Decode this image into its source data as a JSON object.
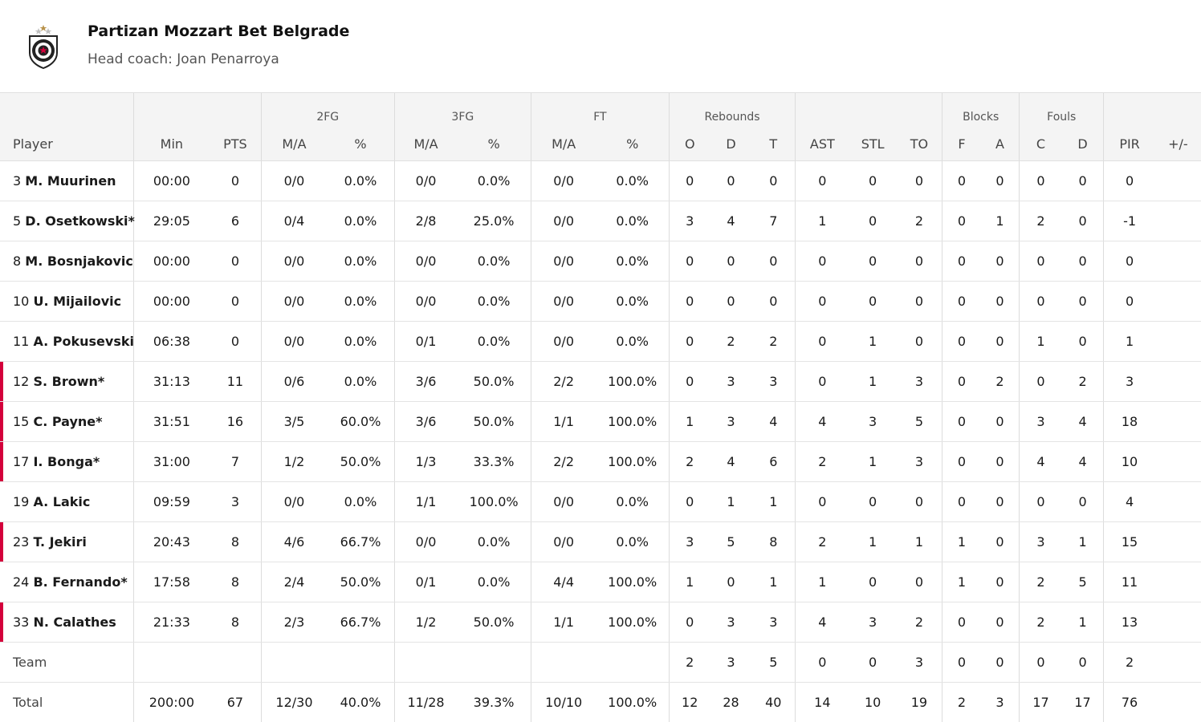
{
  "team": {
    "name": "Partizan Mozzart Bet Belgrade",
    "coach": "Head coach: Joan Penarroya",
    "logo_icon": "partizan-crest-icon"
  },
  "columns": {
    "groups": {
      "fg2": "2FG",
      "fg3": "3FG",
      "ft": "FT",
      "rebounds": "Rebounds",
      "blocks": "Blocks",
      "fouls": "Fouls"
    },
    "sub": {
      "player": "Player",
      "min": "Min",
      "pts": "PTS",
      "fg2_ma": "M/A",
      "fg2_pct": "%",
      "fg3_ma": "M/A",
      "fg3_pct": "%",
      "ft_ma": "M/A",
      "ft_pct": "%",
      "reb_o": "O",
      "reb_d": "D",
      "reb_t": "T",
      "ast": "AST",
      "stl": "STL",
      "to": "TO",
      "blk_f": "F",
      "blk_a": "A",
      "foul_c": "C",
      "foul_d": "D",
      "pir": "PIR",
      "pm": "+/-"
    }
  },
  "players": [
    {
      "num": "3",
      "name": "M. Muurinen",
      "bar": false,
      "min": "00:00",
      "pts": "0",
      "fg2_ma": "0/0",
      "fg2_pct": "0.0%",
      "fg3_ma": "0/0",
      "fg3_pct": "0.0%",
      "ft_ma": "0/0",
      "ft_pct": "0.0%",
      "reb_o": "0",
      "reb_d": "0",
      "reb_t": "0",
      "ast": "0",
      "stl": "0",
      "to": "0",
      "blk_f": "0",
      "blk_a": "0",
      "foul_c": "0",
      "foul_d": "0",
      "pir": "0",
      "pm": ""
    },
    {
      "num": "5",
      "name": "D. Osetkowski*",
      "bar": false,
      "min": "29:05",
      "pts": "6",
      "fg2_ma": "0/4",
      "fg2_pct": "0.0%",
      "fg3_ma": "2/8",
      "fg3_pct": "25.0%",
      "ft_ma": "0/0",
      "ft_pct": "0.0%",
      "reb_o": "3",
      "reb_d": "4",
      "reb_t": "7",
      "ast": "1",
      "stl": "0",
      "to": "2",
      "blk_f": "0",
      "blk_a": "1",
      "foul_c": "2",
      "foul_d": "0",
      "pir": "-1",
      "pm": ""
    },
    {
      "num": "8",
      "name": "M. Bosnjakovic",
      "bar": false,
      "min": "00:00",
      "pts": "0",
      "fg2_ma": "0/0",
      "fg2_pct": "0.0%",
      "fg3_ma": "0/0",
      "fg3_pct": "0.0%",
      "ft_ma": "0/0",
      "ft_pct": "0.0%",
      "reb_o": "0",
      "reb_d": "0",
      "reb_t": "0",
      "ast": "0",
      "stl": "0",
      "to": "0",
      "blk_f": "0",
      "blk_a": "0",
      "foul_c": "0",
      "foul_d": "0",
      "pir": "0",
      "pm": ""
    },
    {
      "num": "10",
      "name": "U. Mijailovic",
      "bar": false,
      "min": "00:00",
      "pts": "0",
      "fg2_ma": "0/0",
      "fg2_pct": "0.0%",
      "fg3_ma": "0/0",
      "fg3_pct": "0.0%",
      "ft_ma": "0/0",
      "ft_pct": "0.0%",
      "reb_o": "0",
      "reb_d": "0",
      "reb_t": "0",
      "ast": "0",
      "stl": "0",
      "to": "0",
      "blk_f": "0",
      "blk_a": "0",
      "foul_c": "0",
      "foul_d": "0",
      "pir": "0",
      "pm": ""
    },
    {
      "num": "11",
      "name": "A. Pokusevski",
      "bar": false,
      "min": "06:38",
      "pts": "0",
      "fg2_ma": "0/0",
      "fg2_pct": "0.0%",
      "fg3_ma": "0/1",
      "fg3_pct": "0.0%",
      "ft_ma": "0/0",
      "ft_pct": "0.0%",
      "reb_o": "0",
      "reb_d": "2",
      "reb_t": "2",
      "ast": "0",
      "stl": "1",
      "to": "0",
      "blk_f": "0",
      "blk_a": "0",
      "foul_c": "1",
      "foul_d": "0",
      "pir": "1",
      "pm": ""
    },
    {
      "num": "12",
      "name": "S. Brown*",
      "bar": true,
      "min": "31:13",
      "pts": "11",
      "fg2_ma": "0/6",
      "fg2_pct": "0.0%",
      "fg3_ma": "3/6",
      "fg3_pct": "50.0%",
      "ft_ma": "2/2",
      "ft_pct": "100.0%",
      "reb_o": "0",
      "reb_d": "3",
      "reb_t": "3",
      "ast": "0",
      "stl": "1",
      "to": "3",
      "blk_f": "0",
      "blk_a": "2",
      "foul_c": "0",
      "foul_d": "2",
      "pir": "3",
      "pm": ""
    },
    {
      "num": "15",
      "name": "C. Payne*",
      "bar": true,
      "min": "31:51",
      "pts": "16",
      "fg2_ma": "3/5",
      "fg2_pct": "60.0%",
      "fg3_ma": "3/6",
      "fg3_pct": "50.0%",
      "ft_ma": "1/1",
      "ft_pct": "100.0%",
      "reb_o": "1",
      "reb_d": "3",
      "reb_t": "4",
      "ast": "4",
      "stl": "3",
      "to": "5",
      "blk_f": "0",
      "blk_a": "0",
      "foul_c": "3",
      "foul_d": "4",
      "pir": "18",
      "pm": ""
    },
    {
      "num": "17",
      "name": "I. Bonga*",
      "bar": true,
      "min": "31:00",
      "pts": "7",
      "fg2_ma": "1/2",
      "fg2_pct": "50.0%",
      "fg3_ma": "1/3",
      "fg3_pct": "33.3%",
      "ft_ma": "2/2",
      "ft_pct": "100.0%",
      "reb_o": "2",
      "reb_d": "4",
      "reb_t": "6",
      "ast": "2",
      "stl": "1",
      "to": "3",
      "blk_f": "0",
      "blk_a": "0",
      "foul_c": "4",
      "foul_d": "4",
      "pir": "10",
      "pm": ""
    },
    {
      "num": "19",
      "name": "A. Lakic",
      "bar": false,
      "min": "09:59",
      "pts": "3",
      "fg2_ma": "0/0",
      "fg2_pct": "0.0%",
      "fg3_ma": "1/1",
      "fg3_pct": "100.0%",
      "ft_ma": "0/0",
      "ft_pct": "0.0%",
      "reb_o": "0",
      "reb_d": "1",
      "reb_t": "1",
      "ast": "0",
      "stl": "0",
      "to": "0",
      "blk_f": "0",
      "blk_a": "0",
      "foul_c": "0",
      "foul_d": "0",
      "pir": "4",
      "pm": ""
    },
    {
      "num": "23",
      "name": "T. Jekiri",
      "bar": true,
      "min": "20:43",
      "pts": "8",
      "fg2_ma": "4/6",
      "fg2_pct": "66.7%",
      "fg3_ma": "0/0",
      "fg3_pct": "0.0%",
      "ft_ma": "0/0",
      "ft_pct": "0.0%",
      "reb_o": "3",
      "reb_d": "5",
      "reb_t": "8",
      "ast": "2",
      "stl": "1",
      "to": "1",
      "blk_f": "1",
      "blk_a": "0",
      "foul_c": "3",
      "foul_d": "1",
      "pir": "15",
      "pm": ""
    },
    {
      "num": "24",
      "name": "B. Fernando*",
      "bar": false,
      "min": "17:58",
      "pts": "8",
      "fg2_ma": "2/4",
      "fg2_pct": "50.0%",
      "fg3_ma": "0/1",
      "fg3_pct": "0.0%",
      "ft_ma": "4/4",
      "ft_pct": "100.0%",
      "reb_o": "1",
      "reb_d": "0",
      "reb_t": "1",
      "ast": "1",
      "stl": "0",
      "to": "0",
      "blk_f": "1",
      "blk_a": "0",
      "foul_c": "2",
      "foul_d": "5",
      "pir": "11",
      "pm": ""
    },
    {
      "num": "33",
      "name": "N. Calathes",
      "bar": true,
      "min": "21:33",
      "pts": "8",
      "fg2_ma": "2/3",
      "fg2_pct": "66.7%",
      "fg3_ma": "1/2",
      "fg3_pct": "50.0%",
      "ft_ma": "1/1",
      "ft_pct": "100.0%",
      "reb_o": "0",
      "reb_d": "3",
      "reb_t": "3",
      "ast": "4",
      "stl": "3",
      "to": "2",
      "blk_f": "0",
      "blk_a": "0",
      "foul_c": "2",
      "foul_d": "1",
      "pir": "13",
      "pm": ""
    }
  ],
  "team_row": {
    "label": "Team",
    "min": "",
    "pts": "",
    "fg2_ma": "",
    "fg2_pct": "",
    "fg3_ma": "",
    "fg3_pct": "",
    "ft_ma": "",
    "ft_pct": "",
    "reb_o": "2",
    "reb_d": "3",
    "reb_t": "5",
    "ast": "0",
    "stl": "0",
    "to": "3",
    "blk_f": "0",
    "blk_a": "0",
    "foul_c": "0",
    "foul_d": "0",
    "pir": "2",
    "pm": ""
  },
  "total_row": {
    "label": "Total",
    "min": "200:00",
    "pts": "67",
    "fg2_ma": "12/30",
    "fg2_pct": "40.0%",
    "fg3_ma": "11/28",
    "fg3_pct": "39.3%",
    "ft_ma": "10/10",
    "ft_pct": "100.0%",
    "reb_o": "12",
    "reb_d": "28",
    "reb_t": "40",
    "ast": "14",
    "stl": "10",
    "to": "19",
    "blk_f": "2",
    "blk_a": "3",
    "foul_c": "17",
    "foul_d": "17",
    "pir": "76",
    "pm": ""
  },
  "colors": {
    "starter_bar": "#d4003b",
    "header_bg": "#f4f4f4"
  }
}
